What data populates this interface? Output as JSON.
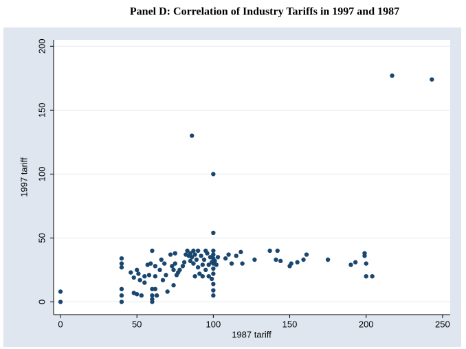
{
  "chart_data": {
    "type": "scatter",
    "title": "Panel D: Correlation of Industry Tariffs in 1997 and 1987",
    "x_label": "1987 tariff",
    "y_label": "1997 tariff",
    "color": "#1a476f",
    "grid": true,
    "xlim": [
      -4.5,
      255
    ],
    "ylim": [
      -10,
      205
    ],
    "xticks": [
      0,
      50,
      100,
      150,
      200,
      250
    ],
    "yticks": [
      0,
      50,
      100,
      150,
      200
    ],
    "x": [
      0,
      0,
      40,
      40,
      40,
      40,
      40,
      40,
      46,
      48,
      48,
      50,
      50,
      51,
      52,
      53,
      55,
      55,
      57,
      58,
      59,
      60,
      60,
      60,
      60,
      60,
      62,
      62,
      62,
      63,
      65,
      66,
      67,
      68,
      69,
      70,
      72,
      73,
      74,
      74,
      75,
      75,
      76,
      77,
      78,
      80,
      81,
      82,
      83,
      84,
      85,
      85,
      86,
      86,
      87,
      87,
      88,
      88,
      89,
      90,
      90,
      91,
      92,
      93,
      93,
      94,
      95,
      95,
      96,
      97,
      97,
      98,
      99,
      99,
      100,
      100,
      100,
      100,
      100,
      100,
      100,
      100,
      100,
      100,
      100,
      101,
      102,
      103,
      108,
      110,
      112,
      115,
      118,
      119,
      127,
      137,
      141,
      142,
      144,
      150,
      151,
      155,
      159,
      161,
      175,
      190,
      193,
      199,
      199,
      200,
      200,
      204,
      217,
      243
    ],
    "values": [
      8,
      0,
      34,
      30,
      27,
      10,
      5,
      0,
      23,
      19,
      7,
      25,
      6,
      22,
      17,
      5,
      20,
      15,
      29,
      21,
      30,
      40,
      10,
      5,
      2,
      0,
      28,
      20,
      10,
      5,
      25,
      33,
      17,
      30,
      21,
      8,
      37,
      28,
      25,
      13,
      38,
      30,
      21,
      23,
      25,
      28,
      31,
      37,
      40,
      36,
      38,
      32,
      35,
      130,
      40,
      30,
      20,
      37,
      33,
      40,
      27,
      22,
      36,
      29,
      20,
      33,
      40,
      25,
      38,
      29,
      20,
      35,
      31,
      18,
      100,
      54,
      40,
      37,
      34,
      30,
      26,
      22,
      14,
      9,
      5,
      32,
      29,
      35,
      34,
      37,
      30,
      36,
      39,
      30,
      33,
      40,
      33,
      40,
      32,
      28,
      30,
      31,
      33,
      37,
      33,
      29,
      31,
      38,
      36,
      30,
      20,
      20,
      177,
      174
    ]
  }
}
